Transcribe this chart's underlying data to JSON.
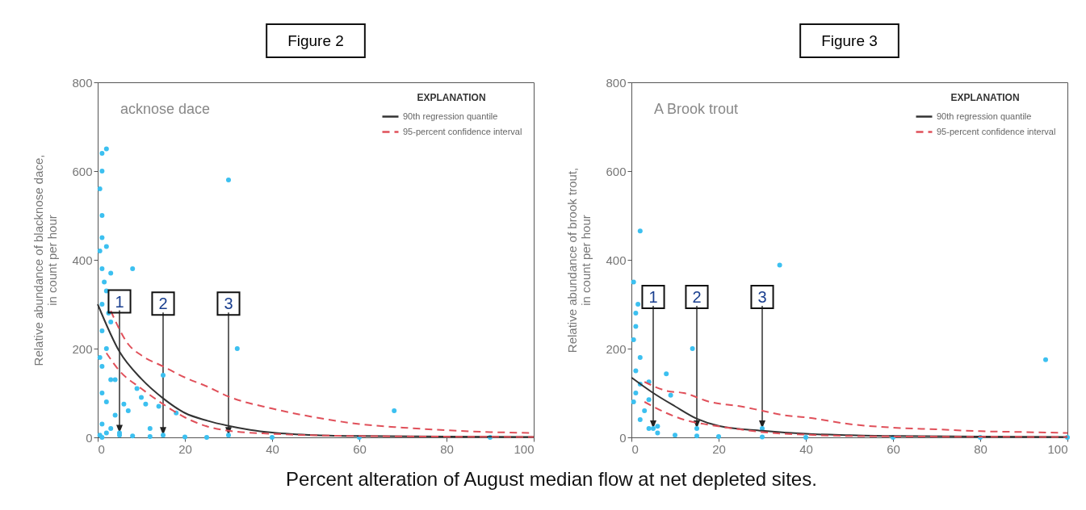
{
  "chart_data": [
    {
      "type": "scatter",
      "title": "Figure 2",
      "xlabel": "Percent alteration of August median flow at net depleted sites.",
      "ylabel": "Relative abundance of blacknose dace,\nin count per hour",
      "legend_title": "EXPLANATION",
      "legend": "top right",
      "grid": false,
      "xlim": [
        0,
        100
      ],
      "xticks": [
        0,
        20,
        40,
        60,
        80,
        100
      ],
      "ylim": [
        0,
        800
      ],
      "yticks": [
        0,
        200,
        400,
        600,
        800
      ],
      "annotations": [
        "acknose dace",
        {
          "text": "1",
          "x": 5,
          "y": 10
        },
        {
          "text": "2",
          "x": 15,
          "y": 5
        },
        {
          "text": "3",
          "x": 30,
          "y": 5
        }
      ],
      "series": [
        {
          "color": "#3cc0f0",
          "x": [
            1,
            2,
            1,
            0.5,
            1,
            1,
            2,
            1,
            3,
            8,
            2,
            1,
            3,
            1,
            2,
            1,
            3,
            1,
            2,
            4,
            1,
            2,
            5,
            8,
            12,
            20,
            6,
            9,
            10,
            11,
            12,
            7,
            4,
            30,
            32,
            68,
            14,
            18,
            15,
            3,
            0.5,
            1,
            25,
            40,
            60,
            90,
            0.5,
            1.5,
            2.5,
            0.5,
            5,
            15,
            30
          ],
          "values": [
            640,
            650,
            600,
            560,
            500,
            450,
            430,
            380,
            370,
            380,
            330,
            300,
            260,
            240,
            200,
            160,
            130,
            100,
            80,
            50,
            30,
            10,
            5,
            3,
            2,
            1,
            75,
            110,
            90,
            75,
            20,
            60,
            130,
            580,
            200,
            60,
            70,
            55,
            140,
            20,
            5,
            0,
            0,
            0,
            0,
            0,
            420,
            350,
            280,
            180,
            10,
            5,
            5
          ]
        },
        {
          "type": "line",
          "name": "90th regression quantile",
          "color": "#333333",
          "line_style": "solid",
          "x": [
            0,
            5,
            10,
            15,
            20,
            25,
            30,
            35,
            40,
            50,
            60,
            80,
            100
          ],
          "values": [
            300,
            193,
            132,
            88,
            55,
            38,
            26,
            17,
            11,
            5,
            3,
            2,
            1
          ]
        },
        {
          "type": "line",
          "name": "95-percent confidence interval",
          "color": "#e0505a",
          "line_style": "dashed",
          "x": [
            3,
            7,
            10,
            15,
            20,
            25,
            30,
            40,
            50,
            60,
            70,
            80,
            90,
            100
          ],
          "values": [
            285,
            210,
            185,
            160,
            135,
            115,
            92,
            65,
            45,
            30,
            22,
            16,
            12,
            10
          ]
        },
        {
          "type": "line",
          "color": "#e0505a",
          "line_style": "dashed",
          "x": [
            2,
            5,
            10,
            15,
            20,
            25,
            30,
            40,
            60,
            100
          ],
          "values": [
            190,
            150,
            110,
            75,
            45,
            25,
            15,
            8,
            3,
            1
          ]
        }
      ]
    },
    {
      "type": "scatter",
      "title": "Figure 3",
      "ylabel": "Relative abundance of brook trout,\nin count per hour",
      "legend_title": "EXPLANATION",
      "legend": "top right",
      "grid": false,
      "xlim": [
        0,
        100
      ],
      "xticks": [
        0,
        20,
        40,
        60,
        80,
        100
      ],
      "ylim": [
        0,
        800
      ],
      "yticks": [
        0,
        200,
        400,
        600,
        800
      ],
      "annotations": [
        "A Brook trout",
        {
          "text": "1",
          "x": 5,
          "y": 20
        },
        {
          "text": "2",
          "x": 15,
          "y": 20
        },
        {
          "text": "3",
          "x": 30,
          "y": 20
        }
      ],
      "series": [
        {
          "color": "#3cc0f0",
          "x": [
            0.5,
            1,
            1,
            0.5,
            2,
            1,
            2,
            1,
            3,
            2,
            4,
            6,
            10,
            15,
            20,
            30,
            2,
            34,
            95,
            14,
            8,
            4,
            4,
            9,
            6,
            40,
            60,
            80,
            100,
            1.5,
            0.5,
            5,
            15,
            30
          ],
          "values": [
            350,
            280,
            250,
            220,
            180,
            150,
            120,
            100,
            60,
            40,
            20,
            10,
            5,
            3,
            2,
            1,
            465,
            388,
            175,
            200,
            143,
            125,
            85,
            95,
            25,
            0,
            0,
            0,
            0,
            300,
            80,
            20,
            20,
            20
          ]
        },
        {
          "type": "line",
          "name": "90th regression quantile",
          "color": "#333333",
          "line_style": "solid",
          "x": [
            0,
            5,
            10,
            15,
            20,
            30,
            40,
            50,
            60,
            80,
            100
          ],
          "values": [
            135,
            100,
            70,
            42,
            26,
            15,
            8,
            5,
            3,
            2,
            1
          ]
        },
        {
          "type": "line",
          "name": "95-percent confidence interval",
          "color": "#e0505a",
          "line_style": "dashed",
          "x": [
            3,
            8,
            12,
            18,
            25,
            30,
            35,
            40,
            50,
            60,
            70,
            80,
            90,
            100
          ],
          "values": [
            125,
            105,
            100,
            80,
            70,
            60,
            50,
            45,
            30,
            22,
            18,
            14,
            12,
            10
          ]
        },
        {
          "type": "line",
          "color": "#e0505a",
          "line_style": "dashed",
          "x": [
            3,
            8,
            12,
            18,
            25,
            30,
            40,
            60,
            100
          ],
          "values": [
            80,
            55,
            40,
            28,
            18,
            12,
            6,
            2,
            1
          ]
        }
      ]
    }
  ]
}
